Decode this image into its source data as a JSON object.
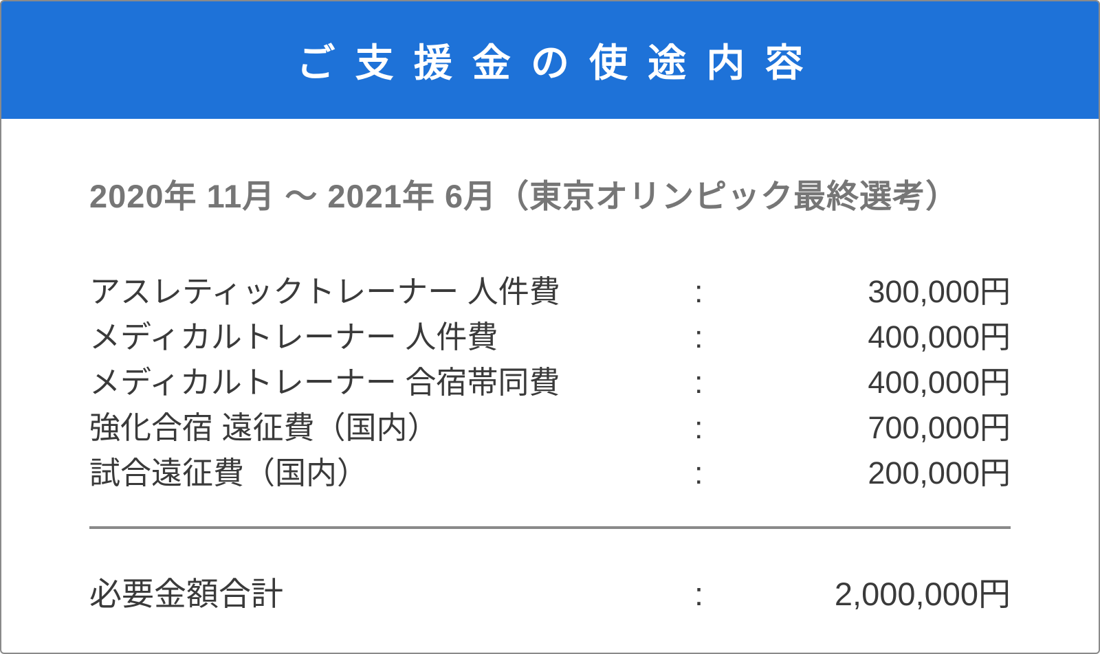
{
  "theme": {
    "header_bg": "#1e72d8",
    "header_text": "#ffffff",
    "body_text": "#3a3a3a",
    "period_text": "#767676",
    "divider_color": "#8a8a8a",
    "border_color": "#8a8a8a"
  },
  "header": {
    "title": "ご支援金の使途内容"
  },
  "period": "2020年 11月 〜 2021年 6月（東京オリンピック最終選考）",
  "items": [
    {
      "label": "アスレティックトレーナー 人件費",
      "separator": ":",
      "amount": "300,000円"
    },
    {
      "label": "メディカルトレーナー 人件費",
      "separator": ":",
      "amount": "400,000円"
    },
    {
      "label": "メディカルトレーナー 合宿帯同費",
      "separator": ":",
      "amount": "400,000円"
    },
    {
      "label": "強化合宿 遠征費（国内）",
      "separator": ":",
      "amount": "700,000円"
    },
    {
      "label": "試合遠征費（国内）",
      "separator": ":",
      "amount": "200,000円"
    }
  ],
  "total": {
    "label": "必要金額合計",
    "separator": ":",
    "amount": "2,000,000円"
  }
}
